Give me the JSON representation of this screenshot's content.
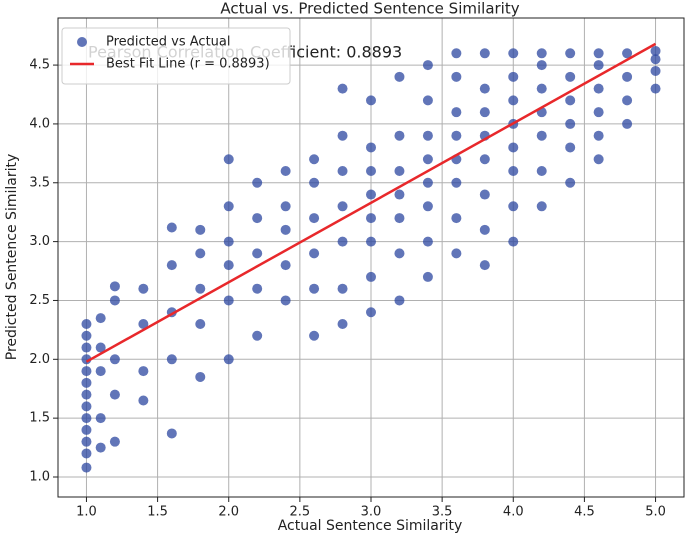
{
  "chart_data": {
    "type": "scatter",
    "title": "Actual vs. Predicted Sentence Similarity",
    "annotation": "Pearson Correlation Coefficient: 0.8893",
    "x_label": "Actual Sentence Similarity",
    "y_label": "Predicted Sentence Similarity",
    "xlim": [
      0.8,
      5.2
    ],
    "ylim": [
      0.83,
      4.9
    ],
    "grid": true,
    "legend": "upper left",
    "xticks": [
      {
        "value": 1,
        "label": "1.0"
      },
      {
        "value": 1.5,
        "label": "1.5"
      },
      {
        "value": 2,
        "label": "2.0"
      },
      {
        "value": 2.5,
        "label": "2.5"
      },
      {
        "value": 3,
        "label": "3.0"
      },
      {
        "value": 3.5,
        "label": "3.5"
      },
      {
        "value": 4,
        "label": "4.0"
      },
      {
        "value": 4.5,
        "label": "4.5"
      },
      {
        "value": 5,
        "label": "5.0"
      }
    ],
    "yticks": [
      {
        "value": 1,
        "label": "1.0"
      },
      {
        "value": 1.5,
        "label": "1.5"
      },
      {
        "value": 2,
        "label": "2.0"
      },
      {
        "value": 2.5,
        "label": "2.5"
      },
      {
        "value": 3,
        "label": "3.0"
      },
      {
        "value": 3.5,
        "label": "3.5"
      },
      {
        "value": 4,
        "label": "4.0"
      },
      {
        "value": 4.5,
        "label": "4.5"
      }
    ],
    "series": [
      {
        "name": "Predicted vs Actual",
        "color": "#2c47a0",
        "mode": "markers",
        "x": [
          1,
          1,
          1,
          1,
          1,
          1,
          1,
          1,
          1,
          1,
          1,
          1,
          1,
          1.1,
          1.1,
          1.1,
          1.1,
          1.1,
          1.2,
          1.2,
          1.2,
          1.2,
          1.2,
          1.4,
          1.4,
          1.4,
          1.4,
          1.6,
          1.6,
          1.6,
          1.6,
          1.6,
          1.8,
          1.8,
          1.8,
          1.8,
          1.8,
          2,
          2,
          2,
          2,
          2,
          2,
          2.2,
          2.2,
          2.2,
          2.2,
          2.2,
          2.4,
          2.4,
          2.4,
          2.4,
          2.4,
          2.6,
          2.6,
          2.6,
          2.6,
          2.6,
          2.6,
          2.8,
          2.8,
          2.8,
          2.8,
          2.8,
          2.8,
          2.8,
          3,
          3,
          3,
          3,
          3,
          3,
          3,
          3,
          3.2,
          3.2,
          3.2,
          3.2,
          3.2,
          3.2,
          3.2,
          3.4,
          3.4,
          3.4,
          3.4,
          3.4,
          3.4,
          3.4,
          3.4,
          3.6,
          3.6,
          3.6,
          3.6,
          3.6,
          3.6,
          3.6,
          3.6,
          3.8,
          3.8,
          3.8,
          3.8,
          3.8,
          3.8,
          3.8,
          3.8,
          4,
          4,
          4,
          4,
          4,
          4,
          4,
          4,
          4.2,
          4.2,
          4.2,
          4.2,
          4.2,
          4.2,
          4.2,
          4.4,
          4.4,
          4.4,
          4.4,
          4.4,
          4.4,
          4.6,
          4.6,
          4.6,
          4.6,
          4.6,
          4.6,
          4.8,
          4.8,
          4.8,
          4.8,
          5,
          5,
          5,
          5
        ],
        "values": [
          1.08,
          1.2,
          1.3,
          1.4,
          1.5,
          1.6,
          1.7,
          1.8,
          1.9,
          2.0,
          2.1,
          2.2,
          2.3,
          1.25,
          1.5,
          1.9,
          2.1,
          2.35,
          1.3,
          1.7,
          2.0,
          2.5,
          2.62,
          1.65,
          1.9,
          2.3,
          2.6,
          1.37,
          2.0,
          2.4,
          2.8,
          3.12,
          1.85,
          2.3,
          2.6,
          2.9,
          3.1,
          2.0,
          2.5,
          2.8,
          3.0,
          3.3,
          3.7,
          2.2,
          2.6,
          2.9,
          3.2,
          3.5,
          2.5,
          2.8,
          3.1,
          3.3,
          3.6,
          2.2,
          2.6,
          2.9,
          3.2,
          3.5,
          3.7,
          2.3,
          2.6,
          3.0,
          3.3,
          3.6,
          3.9,
          4.3,
          2.4,
          2.7,
          3.0,
          3.2,
          3.4,
          3.6,
          3.8,
          4.2,
          2.5,
          2.9,
          3.2,
          3.4,
          3.6,
          3.9,
          4.4,
          2.7,
          3.0,
          3.3,
          3.5,
          3.7,
          3.9,
          4.2,
          4.5,
          2.9,
          3.2,
          3.5,
          3.7,
          3.9,
          4.1,
          4.4,
          4.6,
          2.8,
          3.1,
          3.4,
          3.7,
          3.9,
          4.1,
          4.3,
          4.6,
          3.0,
          3.3,
          3.6,
          3.8,
          4.0,
          4.2,
          4.4,
          4.6,
          3.3,
          3.6,
          3.9,
          4.1,
          4.3,
          4.5,
          4.6,
          3.5,
          3.8,
          4.0,
          4.2,
          4.4,
          4.6,
          3.7,
          3.9,
          4.1,
          4.3,
          4.5,
          4.6,
          4.0,
          4.2,
          4.4,
          4.6,
          4.3,
          4.45,
          4.55,
          4.62
        ]
      },
      {
        "name": "Best Fit Line (r = 0.8893)",
        "color": "#e8282b",
        "mode": "line",
        "x": [
          1,
          5
        ],
        "values": [
          1.98,
          4.68
        ]
      }
    ]
  }
}
